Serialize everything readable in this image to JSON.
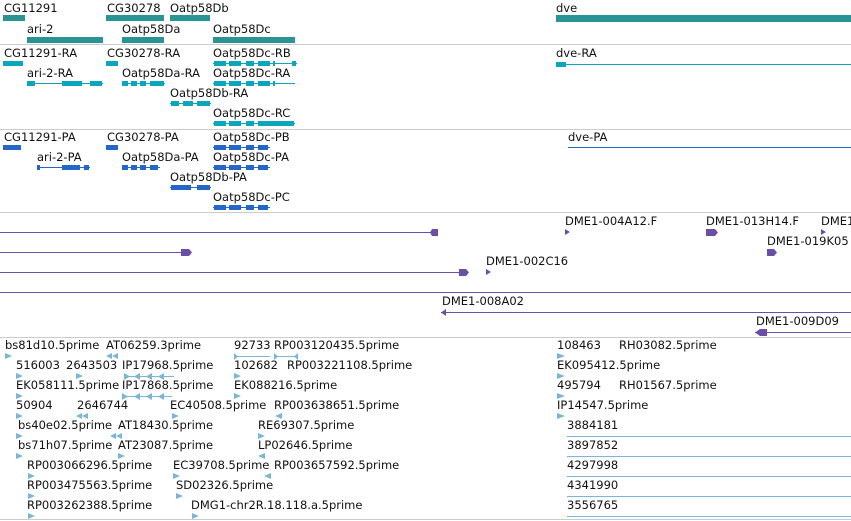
{
  "colors": {
    "gene": "#2a9393",
    "transcript": "#0aa6bd",
    "protein": "#2566c9",
    "clone": "#6b4ea6",
    "est": "#7ab6da",
    "separator": "#cccccc"
  },
  "tracks": {
    "genes": {
      "labels": [
        "CG11291",
        "CG30278",
        "Oatp58Db",
        "dve",
        "ari-2",
        "Oatp58Da",
        "Oatp58Dc"
      ]
    },
    "transcripts": {
      "labels": [
        "CG11291-RA",
        "CG30278-RA",
        "Oatp58Dc-RB",
        "dve-RA",
        "ari-2-RA",
        "Oatp58Da-RA",
        "Oatp58Dc-RA",
        "Oatp58Db-RA",
        "Oatp58Dc-RC"
      ]
    },
    "proteins": {
      "labels": [
        "CG11291-PA",
        "CG30278-PA",
        "Oatp58Dc-PB",
        "dve-PA",
        "ari-2-PA",
        "Oatp58Da-PA",
        "Oatp58Dc-PA",
        "Oatp58Db-PA",
        "Oatp58Dc-PC"
      ]
    },
    "clones": {
      "labels": [
        "DME1-004A12.F",
        "DME1-013H14.F",
        "DME1",
        "DME1-019K05",
        "DME1-002C16",
        "DME1-008A02",
        "DME1-009D09"
      ]
    },
    "ests": {
      "labels": [
        "bs81d10.5prime",
        "AT06259.3prime",
        "92733",
        "RP003120435.5prime",
        "108463",
        "RH03082.5prime",
        "516003",
        "2643503",
        "IP17968.5prime",
        "102682",
        "RP003221108.5prime",
        "EK095412.5prime",
        "EK058111.5prime",
        "IP17868.5prime",
        "EK088216.5prime",
        "495794",
        "RH01567.5prime",
        "50904",
        "2646744",
        "EC40508.5prime",
        "RP003638651.5prime",
        "IP14547.5prime",
        "bs40e02.5prime",
        "AT18430.5prime",
        "RE69307.5prime",
        "3884181",
        "bs71h07.5prime",
        "AT23087.5prime",
        "LP02646.5prime",
        "3897852",
        "RP003066296.5prime",
        "EC39708.5prime",
        "RP003657592.5prime",
        "4297998",
        "RP003475563.5prime",
        "SD02326.5prime",
        "4341990",
        "RP003262388.5prime",
        "DMG1-chr2R.18.118.a.5prime",
        "3556765"
      ]
    }
  }
}
